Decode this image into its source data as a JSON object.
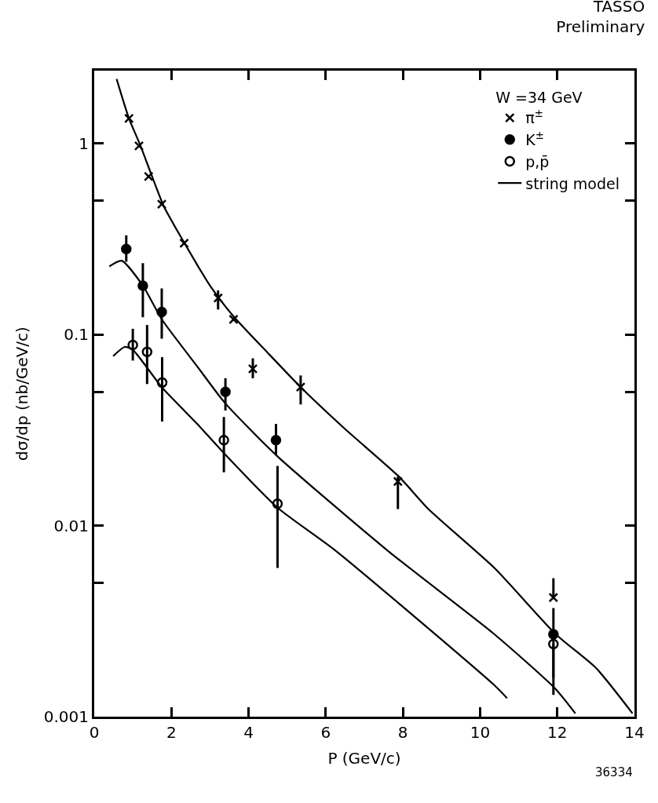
{
  "chart_data": {
    "type": "scatter",
    "title": "TASSO",
    "subtitle": "Preliminary",
    "xlabel": "P (GeV/c)",
    "ylabel": "dσ/dp (nb/GeV/c)",
    "legend_title": "W =34 GeV",
    "annotations": [
      "36334"
    ],
    "series": [
      {
        "name": "π$^{±}$",
        "color": "#000000",
        "marker": "cross",
        "x": [
          0.9,
          1.16,
          1.41,
          1.75,
          2.33,
          3.21,
          3.61,
          4.11,
          5.35,
          7.87,
          11.9
        ],
        "values": [
          1.35,
          0.97,
          0.67,
          0.48,
          0.3,
          0.155,
          0.12,
          0.066,
          0.053,
          0.017,
          0.0042
        ],
        "errors": [
          null,
          null,
          null,
          null,
          null,
          [
            0.135,
            0.17
          ],
          null,
          [
            0.059,
            0.075
          ],
          [
            0.043,
            0.061
          ],
          [
            0.0122,
            0.018
          ],
          [
            0.0042,
            0.0053
          ]
        ]
      },
      {
        "name": "K$^{±}$",
        "color": "#000000",
        "marker": "circle",
        "x": [
          0.83,
          1.26,
          1.75,
          3.4,
          4.71,
          11.9
        ],
        "values": [
          0.28,
          0.18,
          0.131,
          0.05,
          0.028,
          0.0027
        ],
        "errors": [
          [
            0.24,
            0.33
          ],
          [
            0.123,
            0.236
          ],
          [
            0.095,
            0.174
          ],
          [
            0.04,
            0.059
          ],
          [
            0.0236,
            0.034
          ],
          [
            0.0016,
            0.0037
          ]
        ]
      },
      {
        "name": "p,p̄",
        "color": "#000000",
        "marker": "open circle",
        "x": [
          1.0,
          1.37,
          1.76,
          3.36,
          4.75,
          11.9
        ],
        "values": [
          0.088,
          0.081,
          0.056,
          0.028,
          0.013,
          0.0024
        ],
        "errors": [
          [
            0.073,
            0.107
          ],
          [
            0.055,
            0.112
          ],
          [
            0.035,
            0.076
          ],
          [
            0.019,
            0.037
          ],
          [
            0.006,
            0.0205
          ],
          [
            0.0013,
            0.0024
          ]
        ]
      },
      {
        "name": "string model",
        "type": "line",
        "color": "#000000",
        "x": [
          0.58,
          0.9,
          1.2,
          1.5,
          1.8,
          2.3,
          3.0,
          3.6,
          4.5,
          5.35,
          6.5,
          7.9,
          8.66,
          10.37,
          11.96,
          13.0,
          13.95
        ],
        "values": [
          2.17,
          1.35,
          0.97,
          0.67,
          0.47,
          0.31,
          0.18,
          0.125,
          0.08,
          0.053,
          0.032,
          0.018,
          0.0122,
          0.006,
          0.0027,
          0.0018,
          0.00104
        ]
      },
      {
        "type": "line",
        "color": "#000000",
        "x": [
          0.39,
          0.71,
          1.26,
          1.75,
          2.67,
          3.38,
          4.71,
          7.6,
          10.37,
          11.95,
          12.47
        ],
        "values": [
          0.227,
          0.243,
          0.18,
          0.12,
          0.068,
          0.044,
          0.0234,
          0.0074,
          0.0027,
          0.0014,
          0.00104
        ]
      },
      {
        "type": "line",
        "color": "#000000",
        "x": [
          0.49,
          0.79,
          1.0,
          1.75,
          2.67,
          3.38,
          4.75,
          6.25,
          10.37,
          10.7
        ],
        "values": [
          0.077,
          0.086,
          0.083,
          0.053,
          0.034,
          0.0237,
          0.0124,
          0.0074,
          0.00146,
          0.00125
        ]
      }
    ],
    "log": "y",
    "legend": "top right",
    "xlim": [
      0,
      14
    ],
    "xticks": [
      0,
      2,
      4,
      6,
      8,
      10,
      12,
      14
    ],
    "ylim": [
      0.001,
      2.4
    ],
    "yticks": [
      {
        "value": 0.001,
        "label": "0.001"
      },
      {
        "value": 0.005,
        "label": null
      },
      {
        "value": 0.01,
        "label": "0.01"
      },
      {
        "value": 0.05,
        "label": null
      },
      {
        "value": 0.1,
        "label": "0.1"
      },
      {
        "value": 0.5,
        "label": null
      },
      1
    ]
  }
}
